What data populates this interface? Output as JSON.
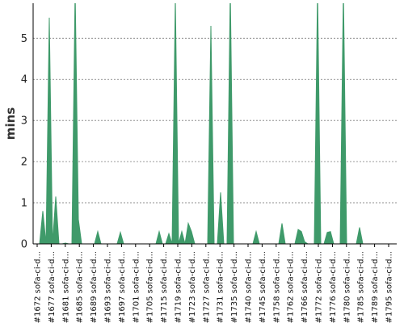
{
  "chart_data": {
    "type": "area",
    "ylabel": "mins",
    "ylim": [
      0,
      5.85
    ],
    "yticks": [
      0,
      1,
      2,
      3,
      4,
      5
    ],
    "grid": "horizontal dashed",
    "legend": "none",
    "color": "#3f9a6a",
    "x_tick_labels": [
      "#1672 sofa-ci-d...",
      "#1677 sofa-ci-d...",
      "#1681 sofa-ci-d...",
      "#1685 sofa-ci-d...",
      "#1689 sofa-ci-d...",
      "#1693 sofa-ci-d...",
      "#1697 sofa-ci-d...",
      "#1701 sofa-ci-d...",
      "#1705 sofa-ci-d...",
      "#1715 sofa-ci-d...",
      "#1719 sofa-ci-d...",
      "#1723 sofa-ci-d...",
      "#1727 sofa-ci-d...",
      "#1731 sofa-ci-d...",
      "#1735 sofa-ci-d...",
      "#1740 sofa-ci-d...",
      "#1745 sofa-ci-d...",
      "#1758 sofa-ci-d...",
      "#1762 sofa-ci-d...",
      "#1766 sofa-ci-d...",
      "#1772 sofa-ci-d...",
      "#1776 sofa-ci-d...",
      "#1780 sofa-ci-d...",
      "#1785 sofa-ci-d...",
      "#1789 sofa-ci-d...",
      "#1795 sofa-ci-d..."
    ],
    "values": [
      0.0,
      0.0,
      0.8,
      0.0,
      5.5,
      0.0,
      1.15,
      0.0,
      0.0,
      0.02,
      0.0,
      0.0,
      6.2,
      0.6,
      0.0,
      0.0,
      0.0,
      0.0,
      0.0,
      0.3,
      0.0,
      0.0,
      0.0,
      0.0,
      0.0,
      0.0,
      0.28,
      0.0,
      0.0,
      0.0,
      0.0,
      0.0,
      0.0,
      0.0,
      0.0,
      0.0,
      0.0,
      0.0,
      0.3,
      0.0,
      0.0,
      0.25,
      0.0,
      6.0,
      0.0,
      0.3,
      0.0,
      0.5,
      0.3,
      0.0,
      0.0,
      0.0,
      0.0,
      0.0,
      5.3,
      0.0,
      0.0,
      1.25,
      0.0,
      0.0,
      6.2,
      0.0,
      0.0,
      0.0,
      0.0,
      0.0,
      0.0,
      0.0,
      0.3,
      0.0,
      0.0,
      0.0,
      0.0,
      0.0,
      0.0,
      0.0,
      0.5,
      0.0,
      0.0,
      0.0,
      0.0,
      0.35,
      0.3,
      0.05,
      0.0,
      0.0,
      0.0,
      6.2,
      0.0,
      0.0,
      0.28,
      0.3,
      0.0,
      0.0,
      0.0,
      6.2,
      0.0,
      0.0,
      0.0,
      0.0,
      0.4,
      0.0,
      0.0,
      0.0,
      0.0,
      0.0,
      0.0,
      0.0,
      0.0,
      0.0,
      0.0,
      0.0
    ]
  }
}
